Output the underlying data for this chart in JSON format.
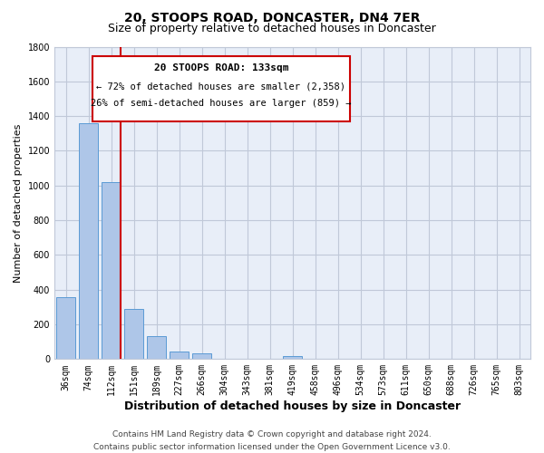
{
  "title": "20, STOOPS ROAD, DONCASTER, DN4 7ER",
  "subtitle": "Size of property relative to detached houses in Doncaster",
  "xlabel": "Distribution of detached houses by size in Doncaster",
  "ylabel": "Number of detached properties",
  "bar_labels": [
    "36sqm",
    "74sqm",
    "112sqm",
    "151sqm",
    "189sqm",
    "227sqm",
    "266sqm",
    "304sqm",
    "343sqm",
    "381sqm",
    "419sqm",
    "458sqm",
    "496sqm",
    "534sqm",
    "573sqm",
    "611sqm",
    "650sqm",
    "688sqm",
    "726sqm",
    "765sqm",
    "803sqm"
  ],
  "bar_values": [
    355,
    1360,
    1020,
    290,
    130,
    45,
    35,
    0,
    0,
    0,
    20,
    0,
    0,
    0,
    0,
    0,
    0,
    0,
    0,
    0,
    0
  ],
  "bar_color": "#aec6e8",
  "bar_edge_color": "#5b9bd5",
  "vline_position": 2.425,
  "vline_color": "#cc0000",
  "ylim": [
    0,
    1800
  ],
  "yticks": [
    0,
    200,
    400,
    600,
    800,
    1000,
    1200,
    1400,
    1600,
    1800
  ],
  "annotation_box_text_line1": "20 STOOPS ROAD: 133sqm",
  "annotation_box_text_line2": "← 72% of detached houses are smaller (2,358)",
  "annotation_box_text_line3": "26% of semi-detached houses are larger (859) →",
  "footer_line1": "Contains HM Land Registry data © Crown copyright and database right 2024.",
  "footer_line2": "Contains public sector information licensed under the Open Government Licence v3.0.",
  "background_color": "#ffffff",
  "plot_bg_color": "#e8eef8",
  "grid_color": "#c0c8d8",
  "title_fontsize": 10,
  "subtitle_fontsize": 9,
  "xlabel_fontsize": 9,
  "ylabel_fontsize": 8,
  "tick_fontsize": 7,
  "annot_fontsize": 8,
  "footer_fontsize": 6.5
}
